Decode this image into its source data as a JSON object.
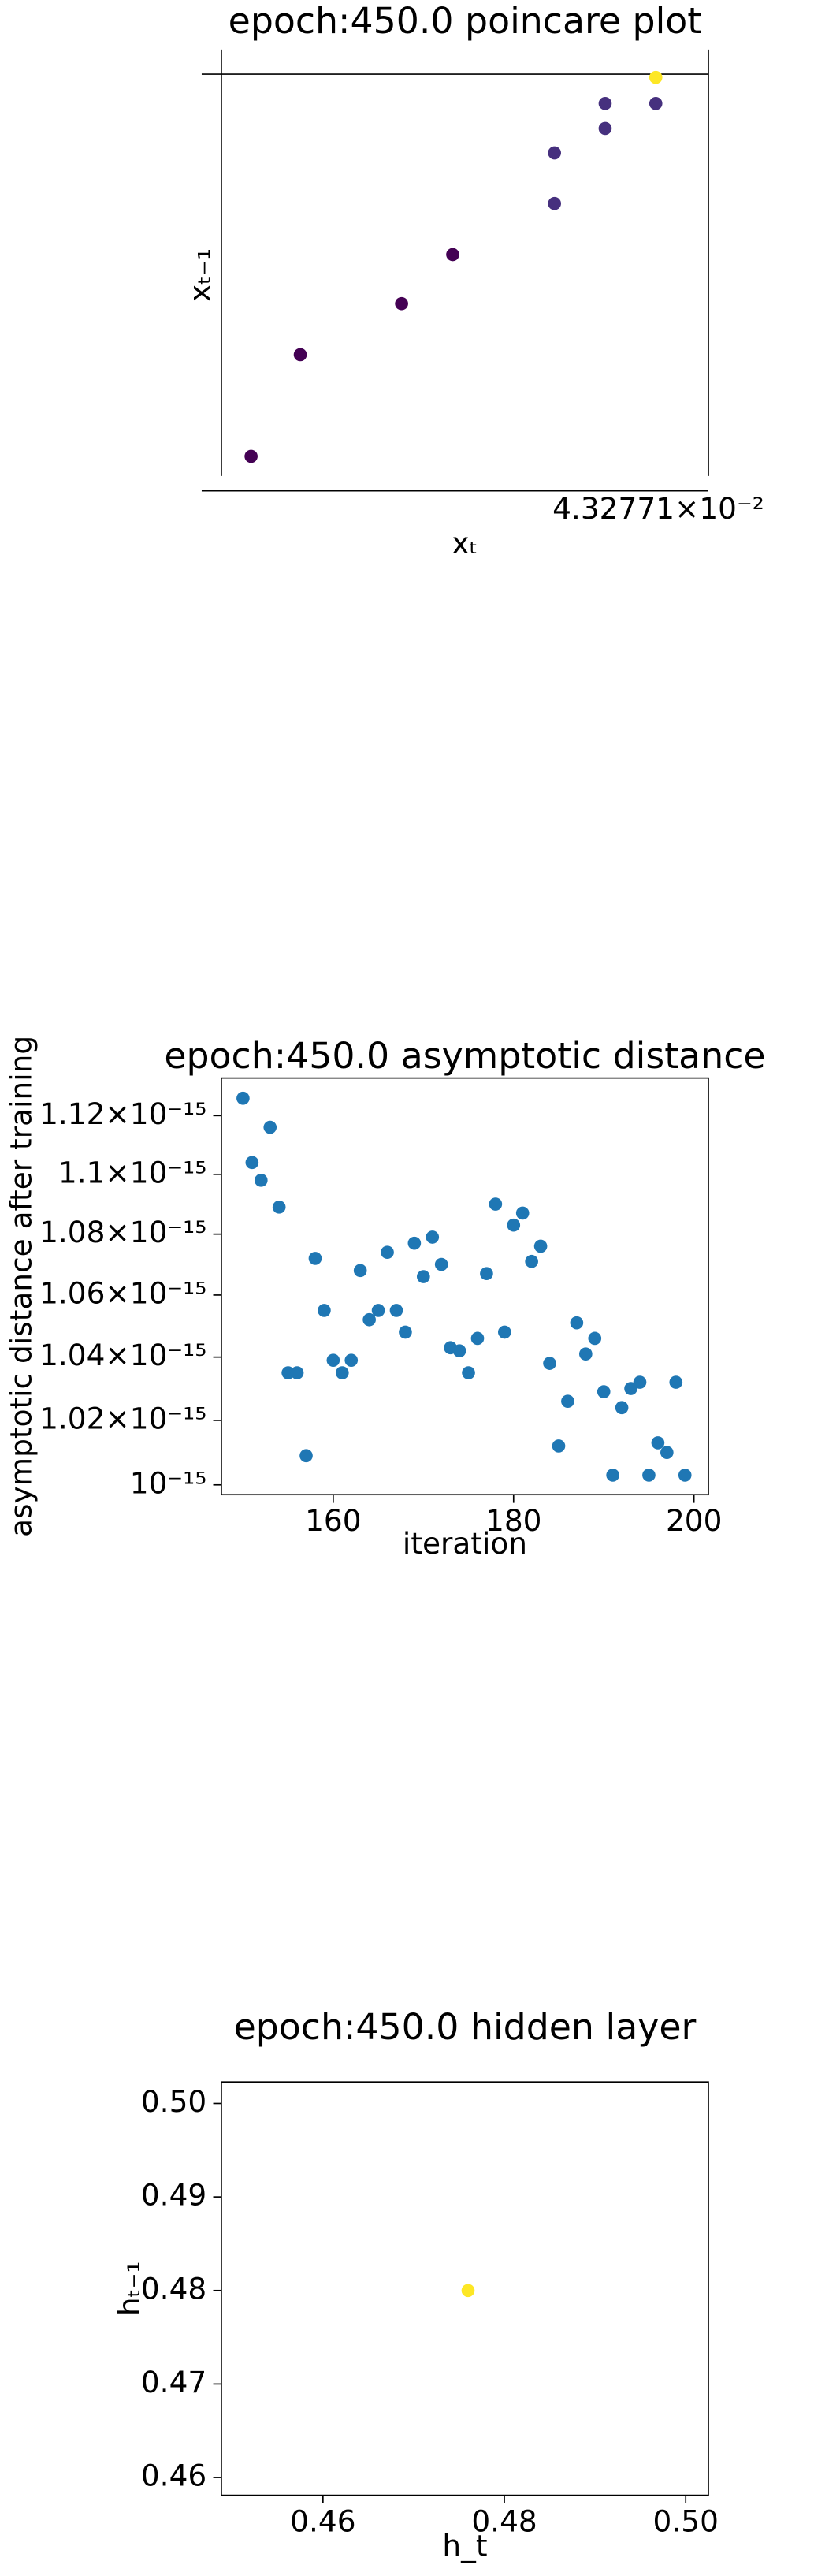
{
  "chart_data": [
    {
      "type": "scatter",
      "title": "epoch:450.0 poincare plot",
      "xlabel": "xₜ",
      "ylabel": "xₜ₋₁",
      "offset_label": "4.32771×10⁻²",
      "x": [
        0.061,
        0.162,
        0.37,
        0.475,
        0.684,
        0.684,
        0.788,
        0.788,
        0.892,
        0.892
      ],
      "values": [
        0.049,
        0.302,
        0.429,
        0.551,
        0.678,
        0.804,
        0.865,
        0.927,
        0.927,
        0.992
      ],
      "colors": [
        "#440154",
        "#440154",
        "#440154",
        "#440154",
        "#46307e",
        "#46307e",
        "#46307e",
        "#46307e",
        "#46307e",
        "#fde725"
      ],
      "xlim": [
        0,
        1
      ],
      "ylim": [
        0,
        1
      ]
    },
    {
      "type": "scatter",
      "title": "epoch:450.0 asymptotic distance",
      "xlabel": "iteration",
      "ylabel": "asymptotic distance after training",
      "color": "#1f77b4",
      "log_y": true,
      "x": [
        150,
        151,
        152,
        153,
        154,
        155,
        156,
        157,
        158,
        159,
        160,
        161,
        162,
        163,
        164,
        165,
        166,
        167,
        168,
        169,
        170,
        171,
        172,
        173,
        174,
        175,
        176,
        177,
        178,
        179,
        180,
        181,
        182,
        183,
        184,
        185,
        186,
        187,
        188,
        189,
        190,
        191,
        192,
        193,
        194,
        195,
        196,
        197,
        198,
        199
      ],
      "values": [
        1.126e-15,
        1.104e-15,
        1.098e-15,
        1.116e-15,
        1.089e-15,
        1.035e-15,
        1.035e-15,
        1.009e-15,
        1.072e-15,
        1.055e-15,
        1.039e-15,
        1.035e-15,
        1.039e-15,
        1.068e-15,
        1.052e-15,
        1.055e-15,
        1.074e-15,
        1.055e-15,
        1.048e-15,
        1.077e-15,
        1.066e-15,
        1.079e-15,
        1.07e-15,
        1.043e-15,
        1.042e-15,
        1.035e-15,
        1.046e-15,
        1.067e-15,
        1.09e-15,
        1.048e-15,
        1.083e-15,
        1.087e-15,
        1.071e-15,
        1.076e-15,
        1.038e-15,
        1.012e-15,
        1.026e-15,
        1.051e-15,
        1.041e-15,
        1.046e-15,
        1.029e-15,
        1.003e-15,
        1.024e-15,
        1.03e-15,
        1.032e-15,
        1.003e-15,
        1.013e-15,
        1.01e-15,
        1.032e-15,
        1.003e-15
      ],
      "xlim": [
        147.6,
        201.6
      ],
      "ylim": [
        9.97e-16,
        1.133e-15
      ],
      "xticks": [
        160,
        180,
        200
      ],
      "yticks": [
        {
          "value": 1e-15,
          "label": "10⁻¹⁵"
        },
        {
          "value": 1.02e-15,
          "label": "1.02×10⁻¹⁵"
        },
        {
          "value": 1.04e-15,
          "label": "1.04×10⁻¹⁵"
        },
        {
          "value": 1.06e-15,
          "label": "1.06×10⁻¹⁵"
        },
        {
          "value": 1.08e-15,
          "label": "1.08×10⁻¹⁵"
        },
        {
          "value": 1.1e-15,
          "label": "1.1×10⁻¹⁵"
        },
        {
          "value": 1.12e-15,
          "label": "1.12×10⁻¹⁵"
        }
      ]
    },
    {
      "type": "scatter",
      "title": "epoch:450.0 hidden layer",
      "xlabel": "h_t",
      "ylabel": "hₜ₋₁",
      "x": [
        0.476
      ],
      "values": [
        0.48
      ],
      "colors": [
        "#fde725"
      ],
      "xlim": [
        0.4488,
        0.5025
      ],
      "ylim": [
        0.4581,
        0.5023
      ],
      "xticks": [
        {
          "value": 0.46,
          "label": "0.46"
        },
        {
          "value": 0.48,
          "label": "0.48"
        },
        {
          "value": 0.5,
          "label": "0.50"
        }
      ],
      "yticks": [
        {
          "value": 0.46,
          "label": "0.46"
        },
        {
          "value": 0.47,
          "label": "0.47"
        },
        {
          "value": 0.48,
          "label": "0.48"
        },
        {
          "value": 0.49,
          "label": "0.49"
        },
        {
          "value": 0.5,
          "label": "0.50"
        }
      ]
    }
  ]
}
